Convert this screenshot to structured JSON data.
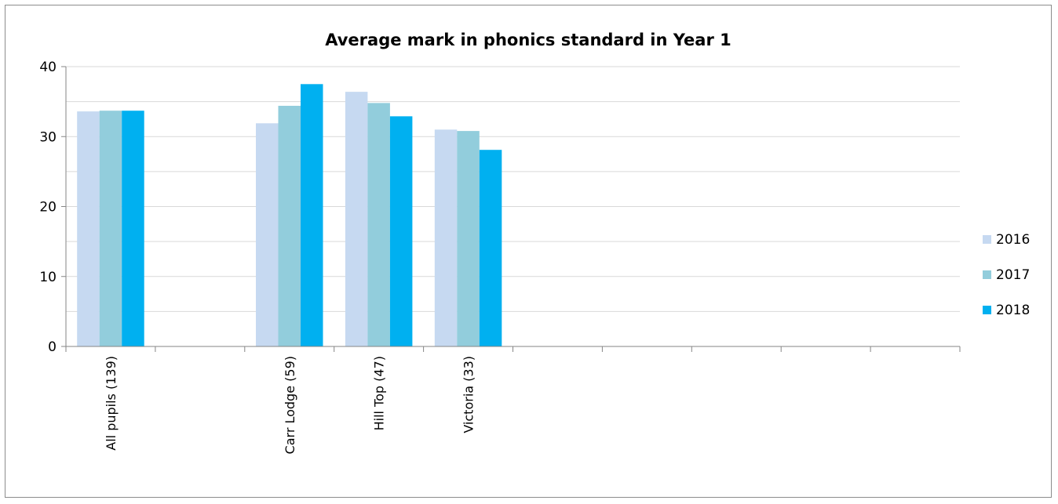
{
  "chart_data": {
    "type": "bar",
    "title": "Average mark in phonics standard in Year 1",
    "xlabel": "",
    "ylabel": "",
    "ylim": [
      0,
      40
    ],
    "yticks": [
      0,
      10,
      20,
      30,
      40
    ],
    "grid": true,
    "legend_position": "right",
    "categories": [
      "All pupils (139)",
      "",
      "Carr Lodge (59)",
      "Hill Top (47)",
      "Victoria (33)",
      "",
      "",
      "",
      "",
      ""
    ],
    "series": [
      {
        "name": "2016",
        "color": "#c6d9f1",
        "values": [
          33.6,
          null,
          31.9,
          36.4,
          31.0,
          null,
          null,
          null,
          null,
          null
        ]
      },
      {
        "name": "2017",
        "color": "#92cddc",
        "values": [
          33.7,
          null,
          34.4,
          34.8,
          30.8,
          null,
          null,
          null,
          null,
          null
        ]
      },
      {
        "name": "2018",
        "color": "#00b0f0",
        "values": [
          33.7,
          null,
          37.5,
          32.9,
          28.1,
          null,
          null,
          null,
          null,
          null
        ]
      }
    ]
  }
}
